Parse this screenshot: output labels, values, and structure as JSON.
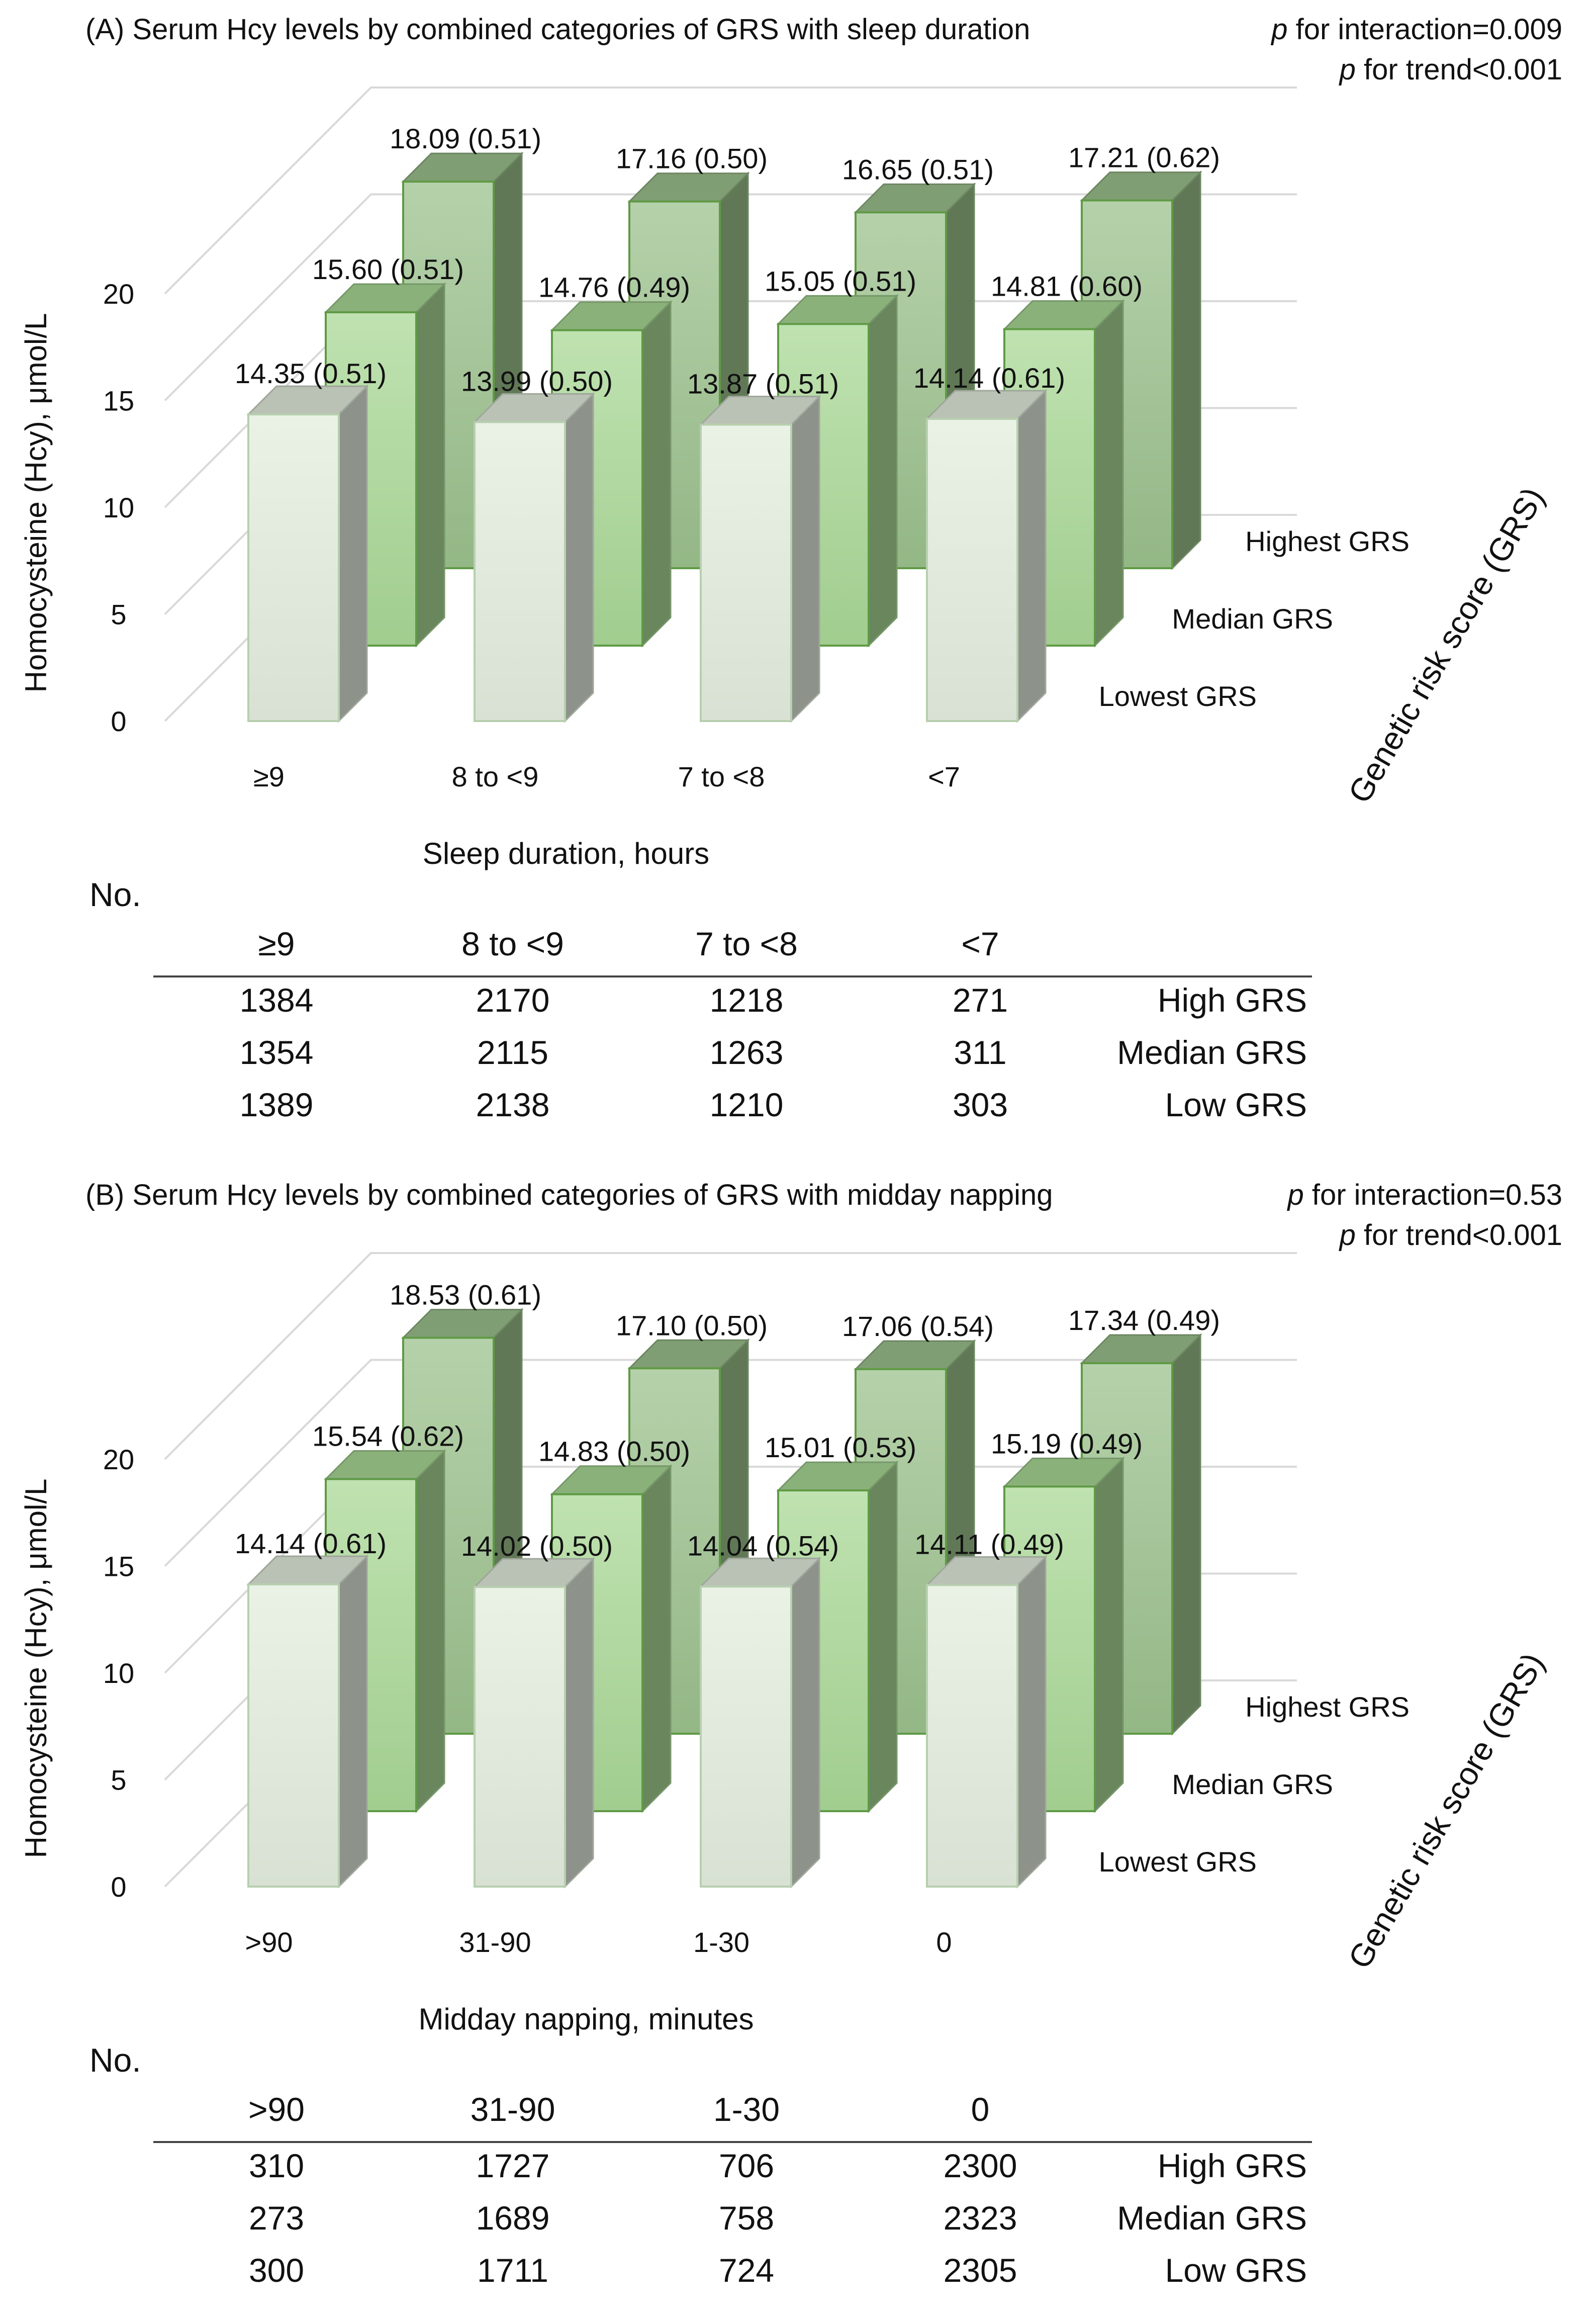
{
  "panels": [
    {
      "id": "A",
      "title": "(A) Serum Hcy levels by combined categories of GRS with sleep duration",
      "p_interaction_label": "p",
      "p_interaction_text": " for interaction=0.009",
      "p_trend_label": "p",
      "p_trend_text": " for trend<0.001",
      "no_label": "No.",
      "chart_data": {
        "type": "bar",
        "subtype": "3d-grouped",
        "ylabel": "Homocysteine (Hcy), μmol/L",
        "xlabel": "Sleep duration, hours",
        "zlabel": "Genetic risk score (GRS)",
        "ylim": [
          0,
          20
        ],
        "yticks": [
          "0",
          "5",
          "10",
          "15",
          "20"
        ],
        "categories": [
          ">=9",
          "8 to <9",
          "7 to <8",
          "<7"
        ],
        "category_labels": [
          "≥9",
          "8 to <9",
          "7 to <8",
          "<7"
        ],
        "series": [
          {
            "name": "Lowest GRS",
            "values": [
              14.35,
              13.99,
              13.87,
              14.14
            ],
            "labels": [
              "14.35 (0.51)",
              "13.99 (0.50)",
              "13.87 (0.51)",
              "14.14 (0.61)"
            ]
          },
          {
            "name": "Median GRS",
            "values": [
              15.6,
              14.76,
              15.05,
              14.81
            ],
            "labels": [
              "15.60 (0.51)",
              "14.76 (0.49)",
              "15.05 (0.51)",
              "14.81 (0.60)"
            ]
          },
          {
            "name": "Highest GRS",
            "values": [
              18.09,
              17.16,
              16.65,
              17.21
            ],
            "labels": [
              "18.09 (0.51)",
              "17.16 (0.50)",
              "16.65 (0.51)",
              "17.21 (0.62)"
            ]
          }
        ],
        "colors": {
          "Lowest GRS": "#e3edde",
          "Median GRS": "#a9d896",
          "Highest GRS": "#9cc18d"
        }
      },
      "counts": {
        "headers": [
          "≥9",
          "8 to <9",
          "7 to <8",
          "<7"
        ],
        "rows": [
          {
            "label": "High GRS",
            "values": [
              "1384",
              "2170",
              "1218",
              "271"
            ]
          },
          {
            "label": "Median GRS",
            "values": [
              "1354",
              "2115",
              "1263",
              "311"
            ]
          },
          {
            "label": "Low GRS",
            "values": [
              "1389",
              "2138",
              "1210",
              "303"
            ]
          }
        ]
      }
    },
    {
      "id": "B",
      "title": "(B)  Serum Hcy levels by combined categories of GRS with midday napping",
      "p_interaction_label": "p",
      "p_interaction_text": " for interaction=0.53",
      "p_trend_label": "p",
      "p_trend_text": " for trend<0.001",
      "no_label": "No.",
      "chart_data": {
        "type": "bar",
        "subtype": "3d-grouped",
        "ylabel": "Homocysteine (Hcy), μmol/L",
        "xlabel": "Midday napping, minutes",
        "zlabel": "Genetic risk score (GRS)",
        "ylim": [
          0,
          20
        ],
        "yticks": [
          "0",
          "5",
          "10",
          "15",
          "20"
        ],
        "categories": [
          ">90",
          "31-90",
          "1-30",
          "0"
        ],
        "category_labels": [
          ">90",
          "31-90",
          "1-30",
          "0"
        ],
        "series": [
          {
            "name": "Lowest GRS",
            "values": [
              14.14,
              14.02,
              14.04,
              14.11
            ],
            "labels": [
              "14.14 (0.61)",
              "14.02 (0.50)",
              "14.04 (0.54)",
              "14.11 (0.49)"
            ]
          },
          {
            "name": "Median GRS",
            "values": [
              15.54,
              14.83,
              15.01,
              15.19
            ],
            "labels": [
              "15.54 (0.62)",
              "14.83 (0.50)",
              "15.01 (0.53)",
              "15.19 (0.49)"
            ]
          },
          {
            "name": "Highest GRS",
            "values": [
              18.53,
              17.1,
              17.06,
              17.34
            ],
            "labels": [
              "18.53 (0.61)",
              "17.10 (0.50)",
              "17.06 (0.54)",
              "17.34 (0.49)"
            ]
          }
        ],
        "colors": {
          "Lowest GRS": "#e3edde",
          "Median GRS": "#a9d896",
          "Highest GRS": "#9cc18d"
        }
      },
      "counts": {
        "headers": [
          ">90",
          "31-90",
          "1-30",
          "0"
        ],
        "rows": [
          {
            "label": "High GRS",
            "values": [
              "310",
              "1727",
              "706",
              "2300"
            ]
          },
          {
            "label": "Median GRS",
            "values": [
              "273",
              "1689",
              "758",
              "2323"
            ]
          },
          {
            "label": "Low GRS",
            "values": [
              "300",
              "1711",
              "724",
              "2305"
            ]
          }
        ]
      }
    }
  ]
}
